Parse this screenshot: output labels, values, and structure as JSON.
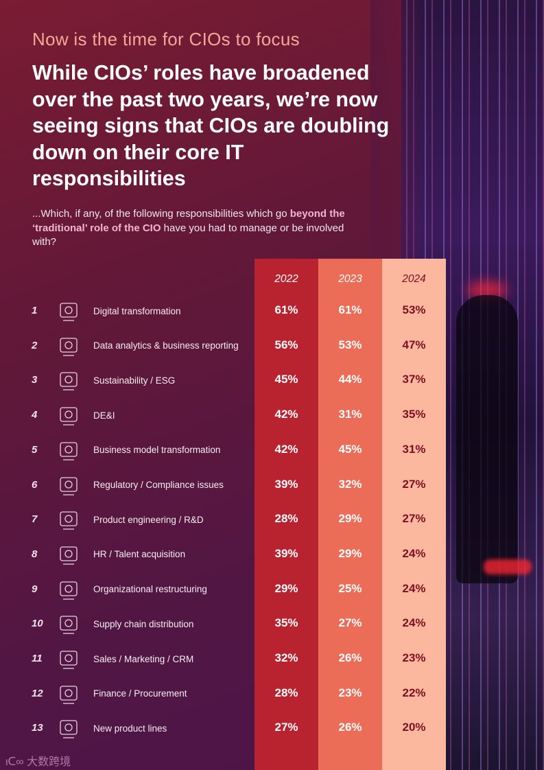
{
  "kicker": "Now is the time for CIOs to focus",
  "headline": "While CIOs’ roles have broadened over the past two years, we’re now seeing signs that CIOs are doubling down on their core IT responsibilities",
  "question": {
    "pre": "...Which, if any, of the following responsibilities which go ",
    "bold": "beyond the ‘traditional’ role of the CIO",
    "post": " have you had to manage or be involved with?"
  },
  "years": [
    "2022",
    "2023",
    "2024"
  ],
  "colors": {
    "y2022": "#b8232f",
    "y2023": "#ec6d57",
    "y2024": "#fbb89f"
  },
  "rows": [
    {
      "n": "1",
      "label": "Digital transformation",
      "icon": "router-icon",
      "v": [
        "61%",
        "61%",
        "53%"
      ]
    },
    {
      "n": "2",
      "label": "Data analytics & business reporting",
      "icon": "analytics-monitor-icon",
      "v": [
        "56%",
        "53%",
        "47%"
      ]
    },
    {
      "n": "3",
      "label": "Sustainability / ESG",
      "icon": "globe-leaf-icon",
      "v": [
        "45%",
        "44%",
        "37%"
      ]
    },
    {
      "n": "4",
      "label": "DE&I",
      "icon": "people-group-icon",
      "v": [
        "42%",
        "31%",
        "35%"
      ]
    },
    {
      "n": "5",
      "label": "Business model transformation",
      "icon": "chart-monitor-icon",
      "v": [
        "42%",
        "45%",
        "31%"
      ]
    },
    {
      "n": "6",
      "label": "Regulatory / Compliance issues",
      "icon": "courthouse-icon",
      "v": [
        "39%",
        "32%",
        "27%"
      ]
    },
    {
      "n": "7",
      "label": "Product engineering / R&D",
      "icon": "books-icon",
      "v": [
        "28%",
        "29%",
        "27%"
      ]
    },
    {
      "n": "8",
      "label": "HR / Talent acquisition",
      "icon": "hands-people-icon",
      "v": [
        "39%",
        "29%",
        "24%"
      ]
    },
    {
      "n": "9",
      "label": "Organizational restructuring",
      "icon": "org-network-icon",
      "v": [
        "29%",
        "25%",
        "24%"
      ]
    },
    {
      "n": "10",
      "label": "Supply chain distribution",
      "icon": "factory-icon",
      "v": [
        "35%",
        "27%",
        "24%"
      ]
    },
    {
      "n": "11",
      "label": "Sales / Marketing / CRM",
      "icon": "megaphone-icon",
      "v": [
        "32%",
        "26%",
        "23%"
      ]
    },
    {
      "n": "12",
      "label": "Finance / Procurement",
      "icon": "calculator-icon",
      "v": [
        "28%",
        "23%",
        "22%"
      ]
    },
    {
      "n": "13",
      "label": "New product lines",
      "icon": "robot-icon",
      "v": [
        "27%",
        "26%",
        "20%"
      ]
    }
  ],
  "watermark": "大数跨境"
}
